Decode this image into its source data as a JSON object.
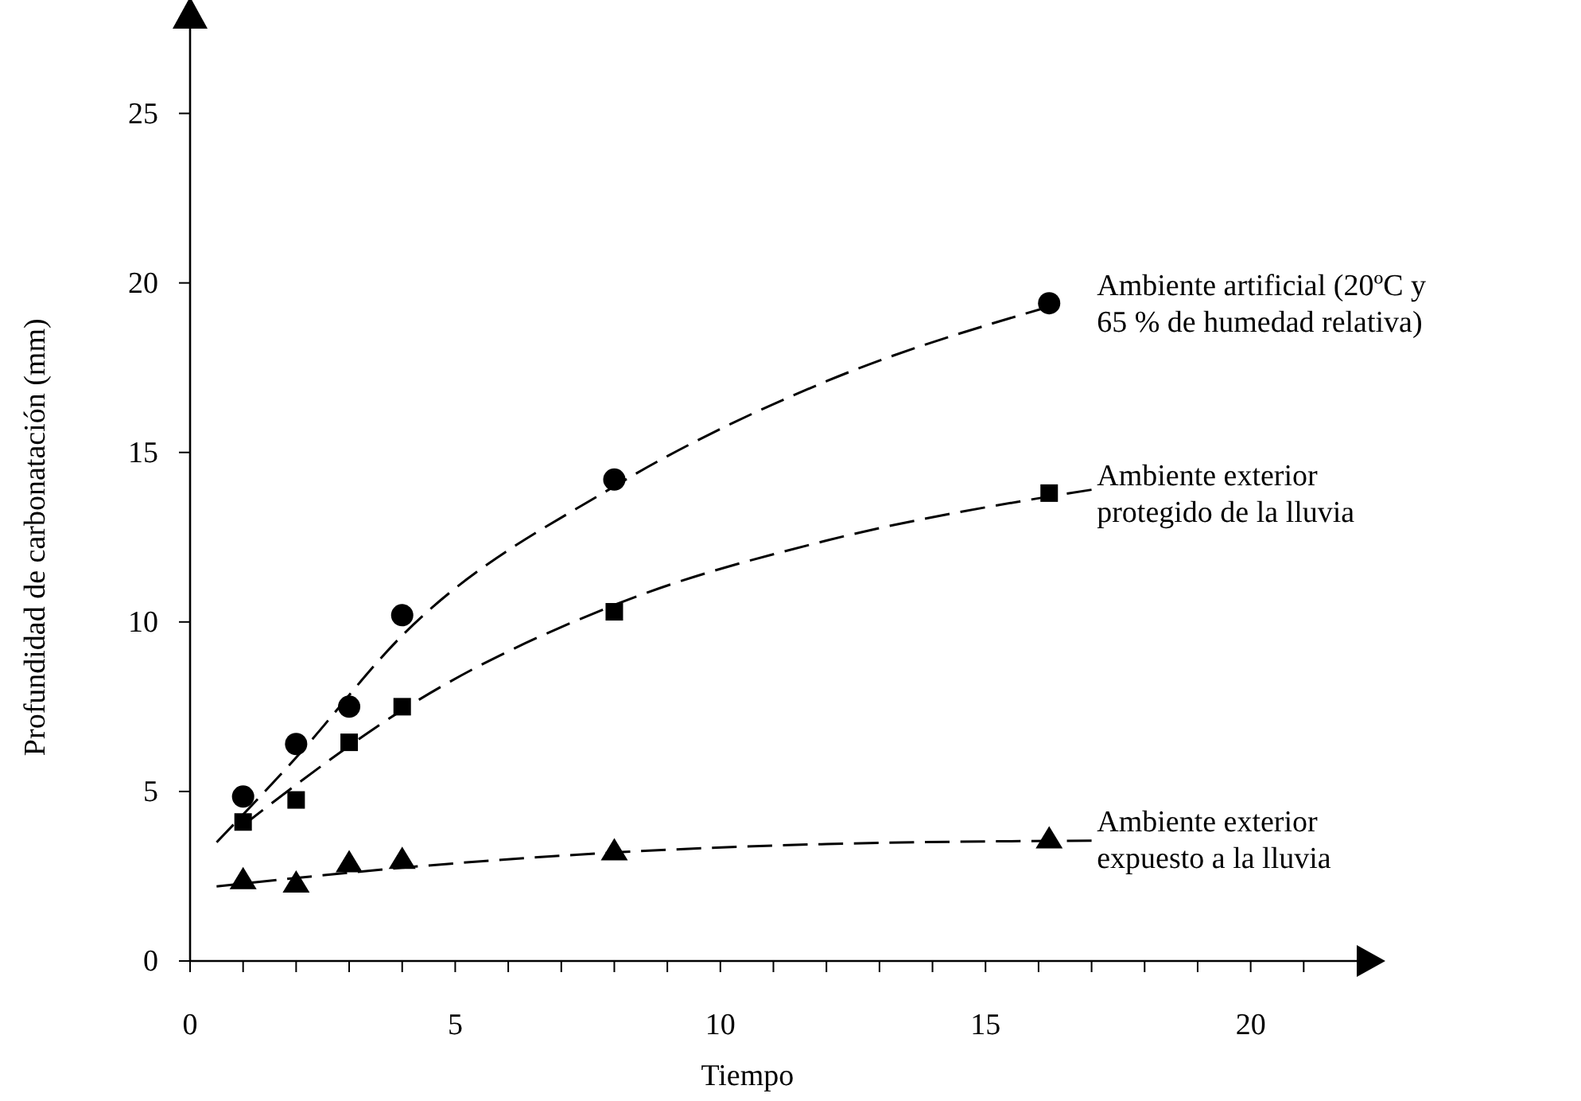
{
  "chart_data": {
    "type": "scatter",
    "xlabel": "Tiempo",
    "ylabel": "Profundidad de carbonatación (mm)",
    "xlim": [
      0,
      22
    ],
    "ylim": [
      0,
      27.5
    ],
    "xticks": [
      0,
      {
        "value": 1,
        "label": null
      },
      {
        "value": 2,
        "label": null
      },
      {
        "value": 3,
        "label": null
      },
      {
        "value": 4,
        "label": null
      },
      5,
      {
        "value": 6,
        "label": null
      },
      {
        "value": 7,
        "label": null
      },
      {
        "value": 8,
        "label": null
      },
      {
        "value": 9,
        "label": null
      },
      10,
      {
        "value": 11,
        "label": null
      },
      {
        "value": 12,
        "label": null
      },
      {
        "value": 13,
        "label": null
      },
      {
        "value": 14,
        "label": null
      },
      15,
      {
        "value": 16,
        "label": null
      },
      {
        "value": 17,
        "label": null
      },
      {
        "value": 18,
        "label": null
      },
      {
        "value": 19,
        "label": null
      },
      20,
      {
        "value": 21,
        "label": null
      }
    ],
    "yticks": [
      0,
      5,
      10,
      15,
      20,
      25
    ],
    "grid": false,
    "series": [
      {
        "name": "Ambiente artificial (20ºC y 65 % de humedad relativa)",
        "marker": "circle",
        "color": "#000000",
        "x": [
          1,
          2,
          3,
          4,
          8,
          16.2
        ],
        "values": [
          4.85,
          6.4,
          7.5,
          10.2,
          14.2,
          19.4
        ]
      },
      {
        "name": "Ambiente exterior protegido de la lluvia",
        "marker": "square",
        "color": "#000000",
        "x": [
          1,
          2,
          3,
          4,
          8,
          16.2
        ],
        "values": [
          4.1,
          4.75,
          6.45,
          7.5,
          10.3,
          13.8
        ]
      },
      {
        "name": "Ambiente exterior expuesto a la lluvia",
        "marker": "triangle",
        "color": "#000000",
        "x": [
          1,
          2,
          3,
          4,
          8,
          16.2
        ],
        "values": [
          2.4,
          2.3,
          2.9,
          3.0,
          3.25,
          3.6
        ]
      },
      {
        "type": "line",
        "marker": "none",
        "line_style": "dashed",
        "color": "#000000",
        "x": [
          0.5,
          2,
          4,
          8,
          12,
          16.2
        ],
        "values": [
          3.5,
          6.0,
          9.6,
          14.0,
          17.1,
          19.3
        ]
      },
      {
        "type": "line",
        "marker": "none",
        "line_style": "dashed",
        "color": "#000000",
        "x": [
          1,
          2,
          4,
          8,
          12,
          16.2,
          17
        ],
        "values": [
          4.0,
          5.2,
          7.4,
          10.5,
          12.4,
          13.7,
          13.9
        ]
      },
      {
        "type": "line",
        "marker": "none",
        "line_style": "dashed",
        "color": "#000000",
        "x": [
          0.5,
          4,
          8,
          12,
          17
        ],
        "values": [
          2.2,
          2.75,
          3.2,
          3.45,
          3.55
        ]
      }
    ]
  }
}
